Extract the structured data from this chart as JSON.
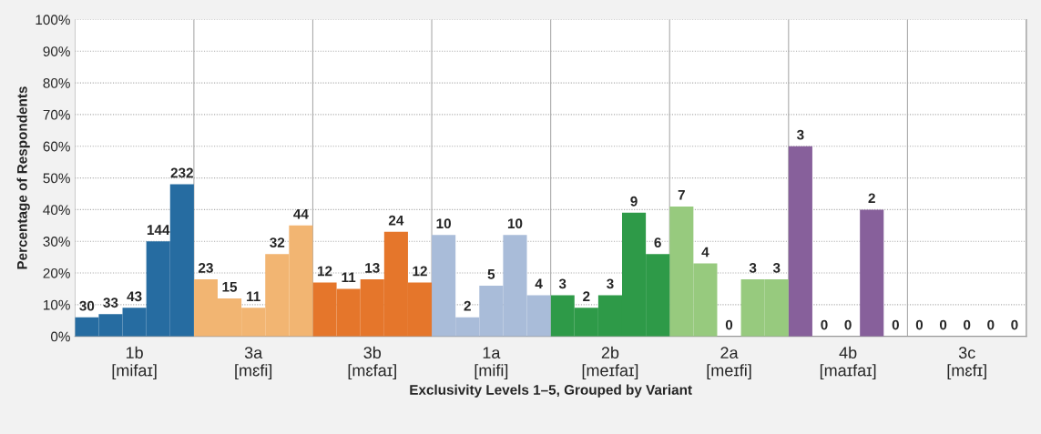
{
  "chart_data": {
    "type": "bar",
    "categories": [
      "1b\n[mifaɪ]",
      "3a\n[mɛfi]",
      "3b\n[mɛfaɪ]",
      "1a\n[mifi]",
      "2b\n[meɪfaɪ]",
      "2a\n[meɪfi]",
      "4b\n[maɪfaɪ]",
      "3c\n[mɛfɪ]"
    ],
    "xlabel": "Exclusivity Levels 1–5, Grouped by Variant",
    "ylabel": "Percentage of Respondents",
    "ylim": [
      0,
      100
    ],
    "yticks": [
      {
        "value": 0,
        "label": "0%"
      },
      {
        "value": 10,
        "label": "10%"
      },
      {
        "value": 20,
        "label": "20%"
      },
      {
        "value": 30,
        "label": "30%"
      },
      {
        "value": 40,
        "label": "40%"
      },
      {
        "value": 50,
        "label": "50%"
      },
      {
        "value": 60,
        "label": "60%"
      },
      {
        "value": 70,
        "label": "70%"
      },
      {
        "value": 80,
        "label": "80%"
      },
      {
        "value": 90,
        "label": "90%"
      },
      {
        "value": 100,
        "label": "100%"
      }
    ],
    "grid": true,
    "series": [
      {
        "colors": [
          "#266ca1",
          "#f2b572",
          "#e5762b",
          "#a9bcd9",
          "#2e9a48",
          "#97ca7e",
          "#87609b",
          "#87609b"
        ],
        "values": [
          6,
          18,
          17,
          32,
          13,
          41,
          60,
          0
        ]
      },
      {
        "colors": [
          "#266ca1",
          "#f2b572",
          "#e5762b",
          "#a9bcd9",
          "#2e9a48",
          "#97ca7e",
          "#87609b",
          "#87609b"
        ],
        "values": [
          7,
          12,
          15,
          6,
          9,
          23,
          0,
          0
        ]
      },
      {
        "colors": [
          "#266ca1",
          "#f2b572",
          "#e5762b",
          "#a9bcd9",
          "#2e9a48",
          "#97ca7e",
          "#87609b",
          "#87609b"
        ],
        "values": [
          9,
          9,
          18,
          16,
          13,
          0,
          0,
          0
        ]
      },
      {
        "colors": [
          "#266ca1",
          "#f2b572",
          "#e5762b",
          "#a9bcd9",
          "#2e9a48",
          "#97ca7e",
          "#87609b",
          "#87609b"
        ],
        "values": [
          30,
          26,
          33,
          32,
          39,
          18,
          40,
          0
        ]
      },
      {
        "colors": [
          "#266ca1",
          "#f2b572",
          "#e5762b",
          "#a9bcd9",
          "#2e9a48",
          "#97ca7e",
          "#87609b",
          "#87609b"
        ],
        "values": [
          48,
          35,
          17,
          13,
          26,
          18,
          0,
          0
        ]
      }
    ],
    "annotations": [
      "30",
      "33",
      "43",
      "144",
      "232",
      "23",
      "15",
      "11",
      "32",
      "44",
      "12",
      "11",
      "13",
      "24",
      "12",
      "10",
      "2",
      "5",
      "10",
      "4",
      "3",
      "2",
      "3",
      "9",
      "6",
      "7",
      "4",
      "0",
      "3",
      "3",
      "3",
      "0",
      "0",
      "2",
      "0",
      "0",
      "0",
      "0",
      "0",
      "0"
    ]
  }
}
